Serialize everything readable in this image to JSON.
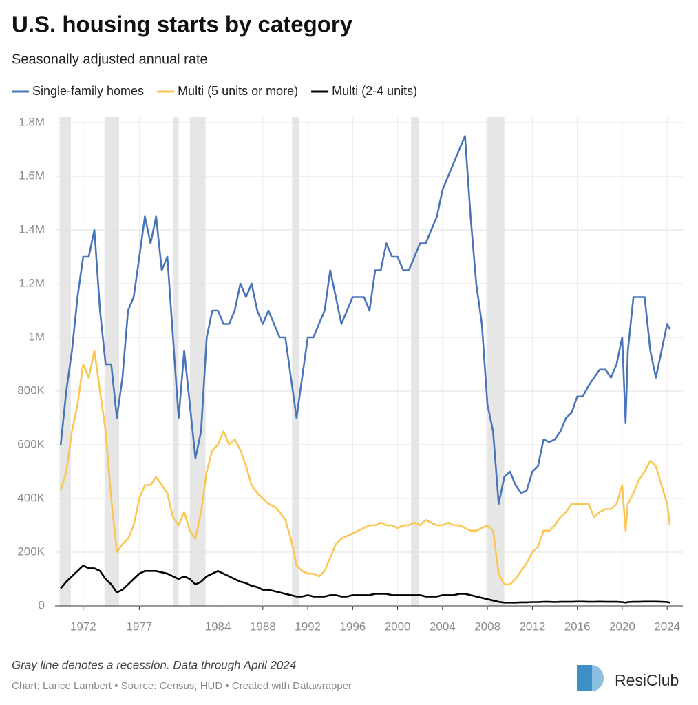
{
  "chart_data": {
    "type": "line",
    "title": "U.S. housing starts by category",
    "subtitle": "Seasonally adjusted annual rate",
    "note": "Gray line denotes a recession. Data through April 2024",
    "credit": "Chart: Lance Lambert • Source: Census; HUD • Created with Datawrapper",
    "logo": "ResiClub",
    "grid": true,
    "xlim": [
      1969.5,
      2025.4
    ],
    "ylim": [
      0,
      1800000
    ],
    "xticks": [
      1972,
      1977,
      1984,
      1988,
      1992,
      1996,
      2000,
      2004,
      2008,
      2012,
      2016,
      2020,
      2024
    ],
    "yticks": [
      0,
      {
        "value": 200000,
        "label": "200K"
      },
      {
        "value": 400000,
        "label": "400K"
      },
      {
        "value": 600000,
        "label": "600K"
      },
      {
        "value": 800000,
        "label": "800K"
      },
      {
        "value": 1000000,
        "label": "1M"
      },
      {
        "value": 1200000,
        "label": "1.2M"
      },
      {
        "value": 1400000,
        "label": "1.4M"
      },
      {
        "value": 1600000,
        "label": "1.6M"
      },
      {
        "value": 1800000,
        "label": "1.8M"
      }
    ],
    "recessions": [
      [
        1969.9,
        1970.9
      ],
      [
        1973.9,
        1975.2
      ],
      [
        1980.0,
        1980.5
      ],
      [
        1981.5,
        1982.9
      ],
      [
        1990.6,
        1991.2
      ],
      [
        2001.2,
        2001.9
      ],
      [
        2007.9,
        2009.5
      ]
    ],
    "recession_color": "#e6e6e6",
    "x": [
      1970,
      1970.5,
      1971,
      1971.5,
      1972,
      1972.5,
      1973,
      1973.5,
      1974,
      1974.5,
      1975,
      1975.5,
      1976,
      1976.5,
      1977,
      1977.5,
      1978,
      1978.5,
      1979,
      1979.5,
      1980,
      1980.5,
      1981,
      1981.5,
      1982,
      1982.5,
      1983,
      1983.5,
      1984,
      1984.5,
      1985,
      1985.5,
      1986,
      1986.5,
      1987,
      1987.5,
      1988,
      1988.5,
      1989,
      1989.5,
      1990,
      1990.5,
      1991,
      1991.5,
      1992,
      1992.5,
      1993,
      1993.5,
      1994,
      1994.5,
      1995,
      1995.5,
      1996,
      1996.5,
      1997,
      1997.5,
      1998,
      1998.5,
      1999,
      1999.5,
      2000,
      2000.5,
      2001,
      2001.5,
      2002,
      2002.5,
      2003,
      2003.5,
      2004,
      2004.5,
      2005,
      2005.5,
      2006,
      2006.5,
      2007,
      2007.5,
      2008,
      2008.5,
      2009,
      2009.5,
      2010,
      2010.5,
      2011,
      2011.5,
      2012,
      2012.5,
      2013,
      2013.5,
      2014,
      2014.5,
      2015,
      2015.5,
      2016,
      2016.5,
      2017,
      2017.5,
      2018,
      2018.5,
      2019,
      2019.5,
      2020,
      2020.3,
      2020.5,
      2021,
      2021.5,
      2022,
      2022.5,
      2023,
      2023.5,
      2024,
      2024.25
    ],
    "series": [
      {
        "name": "Single-family homes",
        "color": "#4a74ba",
        "values": [
          600000,
          800000,
          950000,
          1150000,
          1300000,
          1300000,
          1400000,
          1100000,
          900000,
          900000,
          700000,
          850000,
          1100000,
          1150000,
          1300000,
          1450000,
          1350000,
          1450000,
          1250000,
          1300000,
          1000000,
          700000,
          950000,
          750000,
          550000,
          650000,
          1000000,
          1100000,
          1100000,
          1050000,
          1050000,
          1100000,
          1200000,
          1150000,
          1200000,
          1100000,
          1050000,
          1100000,
          1050000,
          1000000,
          1000000,
          850000,
          700000,
          850000,
          1000000,
          1000000,
          1050000,
          1100000,
          1250000,
          1150000,
          1050000,
          1100000,
          1150000,
          1150000,
          1150000,
          1100000,
          1250000,
          1250000,
          1350000,
          1300000,
          1300000,
          1250000,
          1250000,
          1300000,
          1350000,
          1350000,
          1400000,
          1450000,
          1550000,
          1600000,
          1650000,
          1700000,
          1750000,
          1450000,
          1200000,
          1050000,
          750000,
          650000,
          380000,
          480000,
          500000,
          450000,
          420000,
          430000,
          500000,
          520000,
          620000,
          610000,
          620000,
          650000,
          700000,
          720000,
          780000,
          780000,
          820000,
          850000,
          880000,
          880000,
          850000,
          900000,
          1000000,
          680000,
          950000,
          1150000,
          1150000,
          1150000,
          950000,
          850000,
          950000,
          1050000,
          1030000
        ]
      },
      {
        "name": "Multi (5 units or more)",
        "color": "#fcc653",
        "values": [
          430000,
          500000,
          650000,
          750000,
          900000,
          850000,
          950000,
          800000,
          650000,
          400000,
          200000,
          230000,
          250000,
          300000,
          400000,
          450000,
          450000,
          480000,
          450000,
          420000,
          330000,
          300000,
          350000,
          280000,
          250000,
          350000,
          500000,
          580000,
          600000,
          650000,
          600000,
          620000,
          580000,
          520000,
          450000,
          420000,
          400000,
          380000,
          370000,
          350000,
          320000,
          250000,
          150000,
          130000,
          120000,
          120000,
          110000,
          130000,
          180000,
          230000,
          250000,
          260000,
          270000,
          280000,
          290000,
          300000,
          300000,
          310000,
          300000,
          300000,
          290000,
          300000,
          300000,
          310000,
          300000,
          320000,
          310000,
          300000,
          300000,
          310000,
          300000,
          300000,
          290000,
          280000,
          280000,
          290000,
          300000,
          280000,
          120000,
          80000,
          80000,
          100000,
          130000,
          160000,
          200000,
          220000,
          280000,
          280000,
          300000,
          330000,
          350000,
          380000,
          380000,
          380000,
          380000,
          330000,
          350000,
          360000,
          360000,
          380000,
          450000,
          280000,
          380000,
          420000,
          470000,
          500000,
          540000,
          520000,
          450000,
          380000,
          300000
        ]
      },
      {
        "name": "Multi (2-4 units)",
        "color": "#000000",
        "values": [
          65000,
          90000,
          110000,
          130000,
          150000,
          140000,
          140000,
          130000,
          100000,
          80000,
          50000,
          60000,
          80000,
          100000,
          120000,
          130000,
          130000,
          130000,
          125000,
          120000,
          110000,
          100000,
          110000,
          100000,
          80000,
          90000,
          110000,
          120000,
          130000,
          120000,
          110000,
          100000,
          90000,
          85000,
          75000,
          70000,
          60000,
          60000,
          55000,
          50000,
          45000,
          40000,
          35000,
          35000,
          40000,
          35000,
          35000,
          35000,
          40000,
          40000,
          35000,
          35000,
          40000,
          40000,
          40000,
          40000,
          45000,
          45000,
          45000,
          40000,
          40000,
          40000,
          40000,
          40000,
          40000,
          35000,
          35000,
          35000,
          40000,
          40000,
          40000,
          45000,
          45000,
          40000,
          35000,
          30000,
          25000,
          20000,
          15000,
          12000,
          12000,
          12000,
          13000,
          13000,
          14000,
          14000,
          15000,
          15000,
          14000,
          15000,
          15000,
          15000,
          16000,
          16000,
          15000,
          15000,
          16000,
          15000,
          15000,
          15000,
          14000,
          12000,
          14000,
          15000,
          15000,
          16000,
          16000,
          16000,
          15000,
          14000,
          12000
        ]
      }
    ]
  }
}
